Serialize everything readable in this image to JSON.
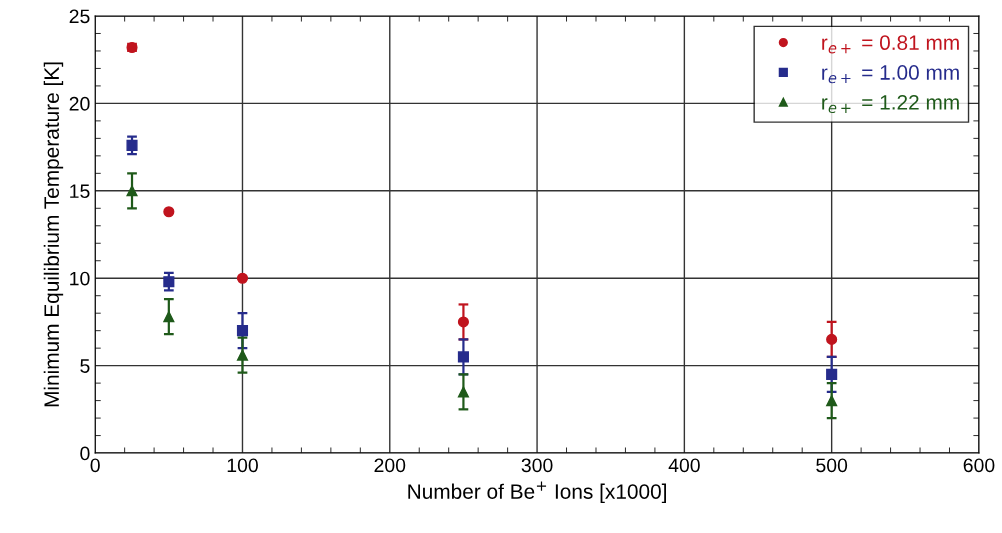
{
  "chart_data": {
    "type": "scatter",
    "xlabel": "Number of Be$^{+}$ Ions [x1000]",
    "ylabel": "Minimum Equilibrium Temperature [K]",
    "x": [
      25,
      50,
      100,
      250,
      500
    ],
    "series": [
      {
        "name": "r$_{e+}$ = 0.81 mm",
        "color": "#c0141e",
        "marker": "circle",
        "values": [
          23.2,
          13.8,
          10.0,
          7.5,
          6.5
        ],
        "errors": [
          0.2,
          null,
          null,
          1,
          1
        ]
      },
      {
        "name": "r$_{e+}$ = 1.00 mm",
        "color": "#262c8c",
        "marker": "square",
        "values": [
          17.6,
          9.8,
          7.0,
          5.5,
          4.5
        ],
        "errors": [
          0.5,
          0.5,
          1,
          1,
          1
        ]
      },
      {
        "name": "r$_{e+}$ = 1.22 mm",
        "color": "#1f5a1a",
        "marker": "triangle",
        "values": [
          15.0,
          7.8,
          5.6,
          3.5,
          3.0
        ],
        "errors": [
          1,
          1,
          1,
          1,
          1
        ]
      }
    ],
    "xlim": [
      0,
      600
    ],
    "xticks": [
      0,
      100,
      200,
      300,
      400,
      500,
      600
    ],
    "ylim": [
      0,
      25
    ],
    "yticks": [
      0,
      5,
      10,
      15,
      20,
      25
    ],
    "grid": true,
    "legend": "top right"
  }
}
